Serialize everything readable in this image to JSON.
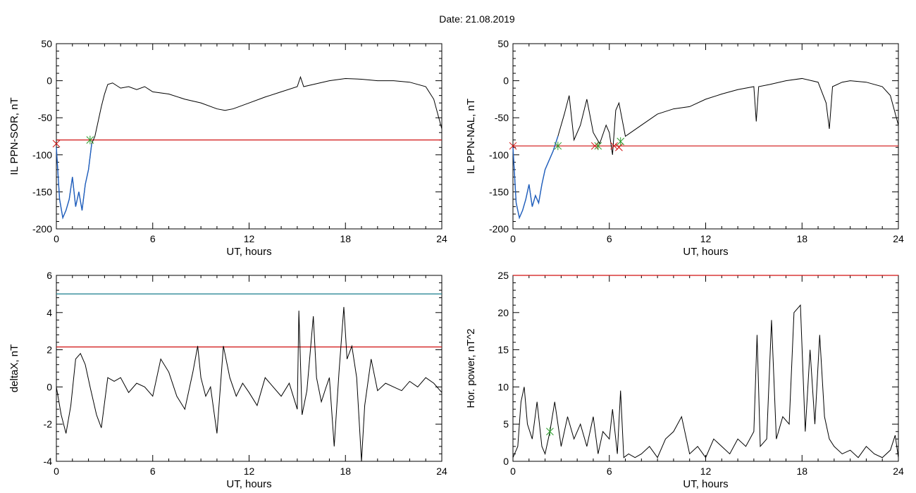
{
  "page": {
    "title": "Date:  21.08.2019"
  },
  "colors": {
    "axis": "#000000",
    "trace": "#000000",
    "storm": "#1f5fbf",
    "threshold": "#d01010",
    "upper": "#1a7f8f",
    "onset_marker": "#2a9a2a",
    "end_marker": "#d01010"
  },
  "chart_data": [
    {
      "id": "il-sor",
      "type": "line",
      "xlabel": "UT, hours",
      "ylabel": "IL PPN-SOR, nT",
      "xlim": [
        0,
        24
      ],
      "ylim": [
        -200,
        50
      ],
      "xticks": [
        0,
        6,
        12,
        18,
        24
      ],
      "yticks": [
        -200,
        -150,
        -100,
        -50,
        0,
        50
      ],
      "x": [
        0,
        0.2,
        0.4,
        0.6,
        0.8,
        1.0,
        1.2,
        1.4,
        1.6,
        1.8,
        2.0,
        2.2,
        2.4,
        2.6,
        2.8,
        3.0,
        3.2,
        3.5,
        4.0,
        4.5,
        5.0,
        5.5,
        6.0,
        7.0,
        8.0,
        9.0,
        10.0,
        10.5,
        11.0,
        12.0,
        13.0,
        14.0,
        15.0,
        15.2,
        15.4,
        16.0,
        17.0,
        18.0,
        19.0,
        20.0,
        21.0,
        22.0,
        23.0,
        23.5,
        24.0
      ],
      "values": [
        -90,
        -160,
        -185,
        -175,
        -160,
        -130,
        -170,
        -150,
        -175,
        -140,
        -120,
        -85,
        -75,
        -55,
        -35,
        -18,
        -5,
        -3,
        -10,
        -8,
        -12,
        -8,
        -15,
        -18,
        -25,
        -30,
        -38,
        -40,
        -38,
        -30,
        -22,
        -15,
        -8,
        5,
        -8,
        -5,
        0,
        3,
        2,
        0,
        0,
        -2,
        -8,
        -25,
        -65
      ],
      "storm_segments": [
        [
          0,
          2.2
        ]
      ],
      "threshold": -80,
      "markers": [
        {
          "x": 2.1,
          "y": -80,
          "kind": "onset"
        },
        {
          "x": 0,
          "y": -85,
          "kind": "end"
        }
      ]
    },
    {
      "id": "il-nal",
      "type": "line",
      "xlabel": "UT, hours",
      "ylabel": "IL PPN-NAL, nT",
      "xlim": [
        0,
        24
      ],
      "ylim": [
        -200,
        50
      ],
      "xticks": [
        0,
        6,
        12,
        18,
        24
      ],
      "yticks": [
        -200,
        -150,
        -100,
        -50,
        0,
        50
      ],
      "x": [
        0,
        0.2,
        0.4,
        0.6,
        0.8,
        1.0,
        1.2,
        1.4,
        1.6,
        1.8,
        2.0,
        2.2,
        2.5,
        2.8,
        3.2,
        3.5,
        3.8,
        4.2,
        4.6,
        5.0,
        5.4,
        5.8,
        6.0,
        6.2,
        6.4,
        6.6,
        7.0,
        8.0,
        9.0,
        10.0,
        11.0,
        12.0,
        13.0,
        14.0,
        15.0,
        15.15,
        15.3,
        16.0,
        17.0,
        18.0,
        19.0,
        19.5,
        19.7,
        19.9,
        20.5,
        21.0,
        22.0,
        23.0,
        23.5,
        24.0
      ],
      "values": [
        -90,
        -165,
        -185,
        -175,
        -160,
        -140,
        -170,
        -155,
        -165,
        -140,
        -120,
        -110,
        -95,
        -75,
        -45,
        -20,
        -80,
        -60,
        -25,
        -70,
        -85,
        -60,
        -70,
        -100,
        -40,
        -30,
        -75,
        -60,
        -45,
        -38,
        -35,
        -25,
        -18,
        -12,
        -8,
        -55,
        -8,
        -5,
        0,
        3,
        -2,
        -30,
        -65,
        -8,
        -2,
        0,
        -2,
        -8,
        -20,
        -60
      ],
      "storm_segments": [
        [
          0,
          2.8
        ],
        [
          6.1,
          6.3
        ]
      ],
      "threshold": -88,
      "markers": [
        {
          "x": 2.8,
          "y": -88,
          "kind": "onset"
        },
        {
          "x": 5.1,
          "y": -88,
          "kind": "end"
        },
        {
          "x": 5.3,
          "y": -88,
          "kind": "onset"
        },
        {
          "x": 6.3,
          "y": -88,
          "kind": "end"
        },
        {
          "x": 6.6,
          "y": -90,
          "kind": "end"
        },
        {
          "x": 6.7,
          "y": -82,
          "kind": "onset"
        },
        {
          "x": 0,
          "y": -88,
          "kind": "end"
        }
      ]
    },
    {
      "id": "deltax",
      "type": "line",
      "xlabel": "UT, hours",
      "ylabel": "deltaX, nT",
      "xlim": [
        0,
        24
      ],
      "ylim": [
        -4,
        6
      ],
      "xticks": [
        0,
        6,
        12,
        18,
        24
      ],
      "yticks": [
        -4,
        -2,
        0,
        2,
        4,
        6
      ],
      "x": [
        0,
        0.3,
        0.6,
        0.9,
        1.2,
        1.5,
        1.8,
        2.1,
        2.5,
        2.8,
        3.2,
        3.6,
        4.0,
        4.5,
        5.0,
        5.5,
        6.0,
        6.5,
        7.0,
        7.5,
        8.0,
        8.5,
        8.8,
        9.0,
        9.3,
        9.6,
        10.0,
        10.4,
        10.8,
        11.2,
        11.6,
        12.0,
        12.5,
        13.0,
        13.5,
        14.0,
        14.5,
        15.0,
        15.1,
        15.3,
        15.6,
        16.0,
        16.2,
        16.5,
        16.8,
        17.0,
        17.3,
        17.6,
        17.9,
        18.1,
        18.4,
        18.7,
        19.0,
        19.2,
        19.6,
        20.0,
        20.5,
        21.0,
        21.5,
        22.0,
        22.5,
        23.0,
        23.5,
        24.0
      ],
      "values": [
        0,
        -1.5,
        -2.5,
        -1,
        1.5,
        1.8,
        1.2,
        0,
        -1.5,
        -2.2,
        0.5,
        0.3,
        0.5,
        -0.3,
        0.2,
        0,
        -0.5,
        1.5,
        0.8,
        -0.5,
        -1.2,
        0.8,
        2.2,
        0.5,
        -0.5,
        0,
        -2.5,
        2.2,
        0.5,
        -0.5,
        0.2,
        -0.3,
        -1,
        0.5,
        0,
        -0.5,
        0.2,
        -1.2,
        4.1,
        -1.5,
        -0.2,
        3.8,
        0.5,
        -0.8,
        0,
        0.5,
        -3.2,
        0.8,
        4.3,
        1.5,
        2.2,
        0.5,
        -4,
        -1,
        1.5,
        -0.2,
        0.2,
        0,
        -0.2,
        0.3,
        0,
        0.5,
        0.2,
        -0.3
      ],
      "threshold": 2.15,
      "upper_line": 5
    },
    {
      "id": "hor-power",
      "type": "line",
      "xlabel": "UT, hours",
      "ylabel": "Hor. power, nT^2",
      "xlim": [
        0,
        24
      ],
      "ylim": [
        0,
        25
      ],
      "xticks": [
        0,
        6,
        12,
        18,
        24
      ],
      "yticks": [
        0,
        5,
        10,
        15,
        20,
        25
      ],
      "x": [
        0,
        0.3,
        0.5,
        0.7,
        0.9,
        1.2,
        1.5,
        1.8,
        2.0,
        2.3,
        2.6,
        3.0,
        3.4,
        3.8,
        4.2,
        4.6,
        5.0,
        5.3,
        5.6,
        6.0,
        6.2,
        6.5,
        6.7,
        6.9,
        7.2,
        7.6,
        8.0,
        8.5,
        9.0,
        9.5,
        10.0,
        10.5,
        11.0,
        11.5,
        12.0,
        12.5,
        13.0,
        13.5,
        14.0,
        14.5,
        15.0,
        15.2,
        15.4,
        15.8,
        16.1,
        16.4,
        16.8,
        17.2,
        17.5,
        17.9,
        18.2,
        18.5,
        18.8,
        19.1,
        19.4,
        19.7,
        20.0,
        20.5,
        21.0,
        21.5,
        22.0,
        22.5,
        23.0,
        23.5,
        23.8,
        24.0
      ],
      "values": [
        0.5,
        2,
        8,
        10,
        5,
        3,
        8,
        2,
        1,
        4,
        8,
        2,
        6,
        3,
        5,
        2,
        6,
        1,
        4,
        3,
        7,
        1,
        9.5,
        0.5,
        1,
        0.5,
        1,
        2,
        0.5,
        3,
        4,
        6,
        1,
        2,
        0.5,
        3,
        2,
        1,
        3,
        2,
        4,
        17,
        2,
        3,
        19,
        3,
        6,
        5,
        20,
        21,
        4,
        15,
        5,
        17,
        6,
        3,
        2,
        1,
        1.5,
        0.5,
        2,
        1,
        0.5,
        1.5,
        3.5,
        0.5
      ],
      "threshold": 25,
      "markers": [
        {
          "x": 2.3,
          "y": 4,
          "kind": "onset"
        }
      ]
    }
  ]
}
